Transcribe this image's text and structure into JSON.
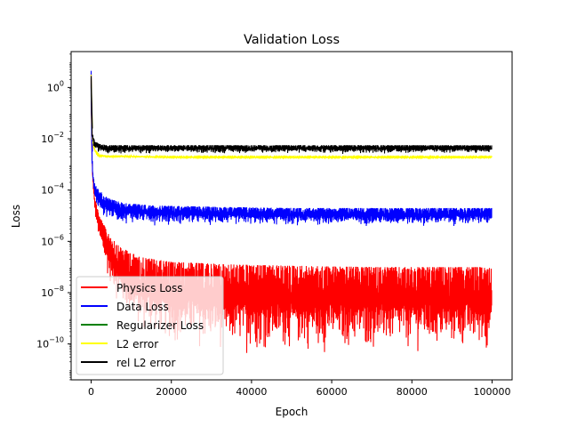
{
  "chart_data": {
    "type": "line",
    "title": "Validation Loss",
    "xlabel": "Epoch",
    "ylabel": "Loss",
    "xlim": [
      -5000,
      105000
    ],
    "ylim_log10": [
      -11.4,
      1.4
    ],
    "yscale": "log",
    "grid": false,
    "legend_placement": "lower-left",
    "x_ticks": [
      0,
      20000,
      40000,
      60000,
      80000,
      100000
    ],
    "x_tick_labels": [
      "0",
      "20000",
      "40000",
      "60000",
      "80000",
      "100000"
    ],
    "y_ticks_log10": [
      0,
      -2,
      -4,
      -6,
      -8,
      -10
    ],
    "y_tick_bases": [
      "10",
      "10",
      "10",
      "10",
      "10",
      "10"
    ],
    "y_tick_exponents": [
      "0",
      "−2",
      "−4",
      "−6",
      "−8",
      "−10"
    ],
    "series": [
      {
        "name": "Physics Loss",
        "color": "#ff0000",
        "style": "noisy-band",
        "x": [
          0,
          200,
          500,
          1000,
          2000,
          4000,
          7000,
          12000,
          20000,
          35000,
          50000,
          70000,
          100000
        ],
        "upper_log10": [
          0.5,
          -2.5,
          -3.6,
          -4.3,
          -5.0,
          -5.6,
          -6.2,
          -6.6,
          -6.8,
          -6.9,
          -6.95,
          -7.0,
          -7.0
        ],
        "lower_log10": [
          -0.5,
          -3.0,
          -4.2,
          -5.2,
          -6.2,
          -7.5,
          -8.8,
          -9.8,
          -10.3,
          -10.6,
          -10.6,
          -10.6,
          -10.6
        ]
      },
      {
        "name": "Data Loss",
        "color": "#0000ff",
        "style": "noisy-band",
        "x": [
          0,
          200,
          500,
          1000,
          2000,
          4000,
          8000,
          15000,
          30000,
          50000,
          100000
        ],
        "upper_log10": [
          0.65,
          -2.5,
          -3.3,
          -3.8,
          -4.0,
          -4.3,
          -4.5,
          -4.6,
          -4.65,
          -4.7,
          -4.7
        ],
        "lower_log10": [
          -0.5,
          -3.3,
          -4.0,
          -4.6,
          -5.0,
          -5.2,
          -5.35,
          -5.4,
          -5.45,
          -5.45,
          -5.45
        ]
      },
      {
        "name": "Regularizer Loss",
        "color": "#008000",
        "style": "hidden-under-others",
        "x": [],
        "upper_log10": [],
        "lower_log10": []
      },
      {
        "name": "L2 error",
        "color": "#ffff00",
        "style": "noisy-band",
        "x": [
          0,
          200,
          500,
          1000,
          2000,
          4000,
          8000,
          20000,
          100000
        ],
        "upper_log10": [
          0.5,
          -1.6,
          -2.1,
          -2.4,
          -2.6,
          -2.65,
          -2.65,
          -2.7,
          -2.7
        ],
        "lower_log10": [
          0.0,
          -2.0,
          -2.45,
          -2.65,
          -2.75,
          -2.75,
          -2.75,
          -2.75,
          -2.75
        ]
      },
      {
        "name": "rel L2 error",
        "color": "#000000",
        "style": "noisy-band",
        "x": [
          0,
          200,
          500,
          1000,
          2000,
          4000,
          8000,
          20000,
          100000
        ],
        "upper_log10": [
          0.45,
          -1.6,
          -1.9,
          -2.1,
          -2.2,
          -2.25,
          -2.25,
          -2.25,
          -2.25
        ],
        "lower_log10": [
          -0.2,
          -2.0,
          -2.3,
          -2.5,
          -2.55,
          -2.6,
          -2.6,
          -2.6,
          -2.6
        ]
      }
    ]
  }
}
